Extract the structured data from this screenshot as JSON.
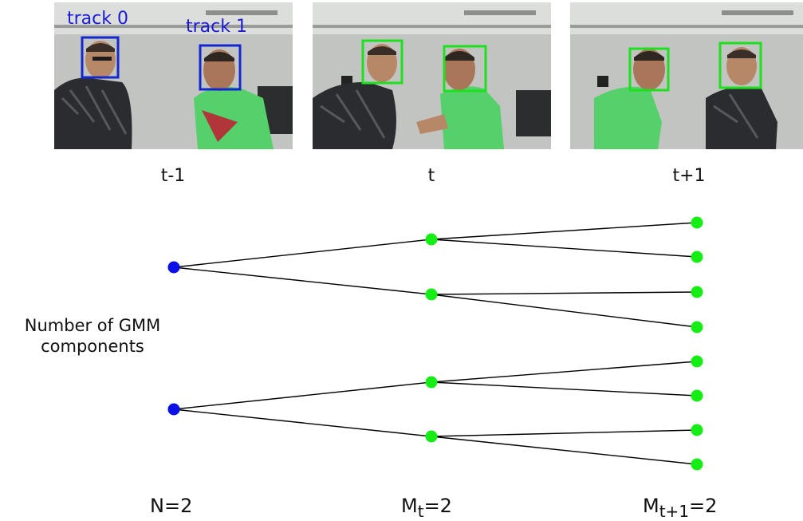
{
  "frames": [
    {
      "time_label": "t-1",
      "box_color": "#1428d2",
      "boxes": [
        {
          "label": "track 0"
        },
        {
          "label": "track 1"
        }
      ]
    },
    {
      "time_label": "t",
      "box_color": "#1fe01f",
      "boxes": [
        {
          "label": ""
        },
        {
          "label": ""
        }
      ]
    },
    {
      "time_label": "t+1",
      "box_color": "#1fe01f",
      "boxes": [
        {
          "label": ""
        },
        {
          "label": ""
        }
      ]
    }
  ],
  "tree": {
    "node_colors": {
      "root": "#0a10e6",
      "child": "#14ee14"
    },
    "roots": [
      {
        "children": [
          {
            "children": 2
          },
          {
            "children": 2
          }
        ]
      },
      {
        "children": [
          {
            "children": 2
          },
          {
            "children": 2
          }
        ]
      }
    ]
  },
  "ylabel_line1": "Number of GMM",
  "ylabel_line2": "components",
  "bottom": {
    "n_label": "N=2",
    "mt_main": "M",
    "mt_sub": "t",
    "mt_val": "=2",
    "mt1_main": "M",
    "mt1_sub": "t+1",
    "mt1_val": "=2"
  }
}
